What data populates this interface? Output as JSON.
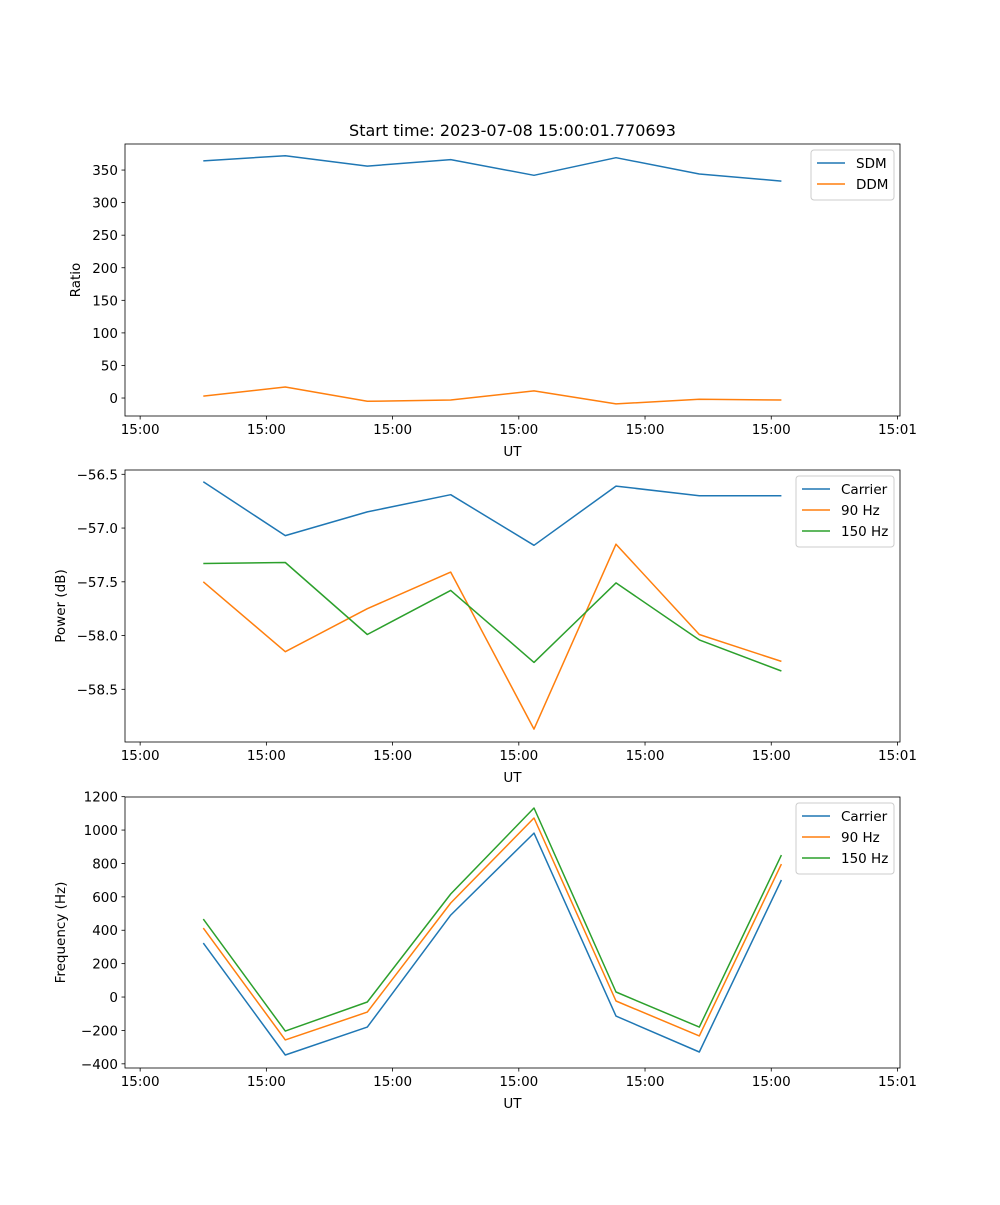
{
  "chart_data": [
    {
      "type": "line",
      "title": "Start time: 2023-07-08 15:00:01.770693",
      "xlabel": "UT",
      "ylabel": "Ratio",
      "x": [
        5.0,
        11.5,
        18.0,
        24.6,
        31.2,
        37.7,
        44.3,
        50.8
      ],
      "xlim": [
        -1.2,
        60.2
      ],
      "xticks": [
        0,
        10,
        20,
        30,
        40,
        50,
        60
      ],
      "xtick_labels": [
        "15:00",
        "15:00",
        "15:00",
        "15:00",
        "15:00",
        "15:00",
        "15:01"
      ],
      "ylim": [
        -27.6,
        390
      ],
      "yticks": [
        0,
        50,
        100,
        150,
        200,
        250,
        300,
        350
      ],
      "ytick_labels": [
        "0",
        "50",
        "100",
        "150",
        "200",
        "250",
        "300",
        "350"
      ],
      "legend_position": "top-right",
      "series": [
        {
          "name": "SDM",
          "color": "#1f77b4",
          "values": [
            364,
            372,
            356,
            366,
            342,
            369,
            344,
            333
          ]
        },
        {
          "name": "DDM",
          "color": "#ff7f0e",
          "values": [
            3,
            17,
            -5,
            -3,
            11,
            -9,
            -2,
            -3
          ]
        }
      ]
    },
    {
      "type": "line",
      "xlabel": "UT",
      "ylabel": "Power (dB)",
      "x": [
        5.0,
        11.5,
        18.0,
        24.6,
        31.2,
        37.7,
        44.3,
        50.8
      ],
      "xlim": [
        -1.2,
        60.2
      ],
      "xticks": [
        0,
        10,
        20,
        30,
        40,
        50,
        60
      ],
      "xtick_labels": [
        "15:00",
        "15:00",
        "15:00",
        "15:00",
        "15:00",
        "15:00",
        "15:01"
      ],
      "ylim": [
        -58.99,
        -56.46
      ],
      "yticks": [
        -58.5,
        -58.0,
        -57.5,
        -57.0,
        -56.5
      ],
      "ytick_labels": [
        "−58.5",
        "−58.0",
        "−57.5",
        "−57.0",
        "−56.5"
      ],
      "legend_position": "top-right",
      "series": [
        {
          "name": "Carrier",
          "color": "#1f77b4",
          "values": [
            -56.57,
            -57.07,
            -56.85,
            -56.69,
            -57.16,
            -56.61,
            -56.7,
            -56.7
          ]
        },
        {
          "name": "90 Hz",
          "color": "#ff7f0e",
          "values": [
            -57.5,
            -58.15,
            -57.75,
            -57.41,
            -58.87,
            -57.15,
            -57.99,
            -58.24
          ]
        },
        {
          "name": "150 Hz",
          "color": "#2ca02c",
          "values": [
            -57.33,
            -57.32,
            -57.99,
            -57.58,
            -58.25,
            -57.51,
            -58.04,
            -58.33
          ]
        }
      ]
    },
    {
      "type": "line",
      "xlabel": "UT",
      "ylabel": "Frequency (Hz)",
      "x": [
        5.0,
        11.5,
        18.0,
        24.6,
        31.2,
        37.7,
        44.3,
        50.8
      ],
      "xlim": [
        -1.2,
        60.2
      ],
      "xticks": [
        0,
        10,
        20,
        30,
        40,
        50,
        60
      ],
      "xtick_labels": [
        "15:00",
        "15:00",
        "15:00",
        "15:00",
        "15:00",
        "15:00",
        "15:01"
      ],
      "ylim": [
        -425,
        1198
      ],
      "yticks": [
        -400,
        -200,
        0,
        200,
        400,
        600,
        800,
        1000,
        1200
      ],
      "ytick_labels": [
        "−400",
        "−200",
        "0",
        "200",
        "400",
        "600",
        "800",
        "1000",
        "1200"
      ],
      "legend_position": "top-right",
      "series": [
        {
          "name": "Carrier",
          "color": "#1f77b4",
          "values": [
            323,
            -347,
            -180,
            491,
            982,
            -114,
            -329,
            701
          ]
        },
        {
          "name": "90 Hz",
          "color": "#ff7f0e",
          "values": [
            413,
            -257,
            -90,
            563,
            1072,
            -24,
            -233,
            796
          ]
        },
        {
          "name": "150 Hz",
          "color": "#2ca02c",
          "values": [
            467,
            -204,
            -30,
            617,
            1132,
            30,
            -180,
            850
          ]
        }
      ]
    }
  ]
}
